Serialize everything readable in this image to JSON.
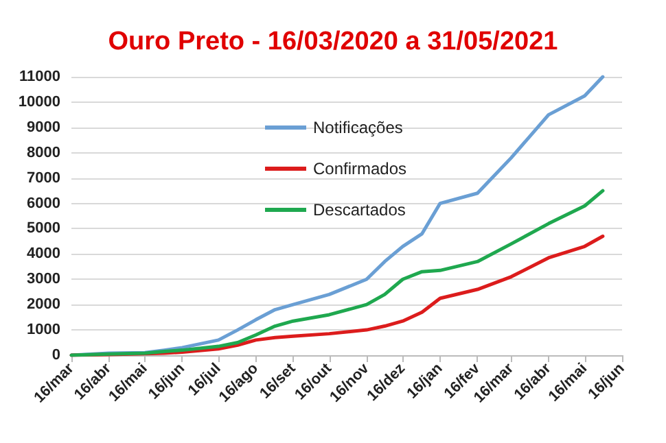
{
  "chart_data": {
    "type": "line",
    "title": "Ouro Preto - 16/03/2020 a 31/05/2021",
    "x": [
      "2020-03-16",
      "2020-04-16",
      "2020-05-16",
      "2020-06-01",
      "2020-06-16",
      "2020-07-16",
      "2020-08-01",
      "2020-08-16",
      "2020-09-01",
      "2020-09-16",
      "2020-10-16",
      "2020-11-16",
      "2020-12-01",
      "2020-12-16",
      "2021-01-01",
      "2021-01-16",
      "2021-02-16",
      "2021-03-16",
      "2021-04-16",
      "2021-05-16",
      "2021-05-31"
    ],
    "series": [
      {
        "name": "Notificações",
        "color": "#6a9fd4",
        "values": [
          0,
          80,
          100,
          200,
          300,
          600,
          1000,
          1400,
          1800,
          2000,
          2400,
          3000,
          3700,
          4300,
          4800,
          6000,
          6400,
          7800,
          9500,
          10250,
          11000
        ]
      },
      {
        "name": "Confirmados",
        "color": "#dc1c1c",
        "values": [
          0,
          30,
          60,
          80,
          120,
          250,
          400,
          600,
          700,
          750,
          850,
          1000,
          1150,
          1350,
          1700,
          2250,
          2600,
          3100,
          3850,
          4300,
          4700
        ]
      },
      {
        "name": "Descartados",
        "color": "#1fa84f",
        "values": [
          0,
          50,
          80,
          150,
          200,
          350,
          500,
          800,
          1150,
          1350,
          1600,
          2000,
          2400,
          3000,
          3300,
          3350,
          3700,
          4400,
          5200,
          5900,
          6500
        ]
      }
    ],
    "xlim": [
      "2020-03-16",
      "2021-06-16"
    ],
    "xticks": [
      {
        "value": "2020-03-16",
        "label": "16/mar"
      },
      {
        "value": "2020-04-16",
        "label": "16/abr"
      },
      {
        "value": "2020-05-16",
        "label": "16/mai"
      },
      {
        "value": "2020-06-16",
        "label": "16/jun"
      },
      {
        "value": "2020-07-16",
        "label": "16/jul"
      },
      {
        "value": "2020-08-16",
        "label": "16/ago"
      },
      {
        "value": "2020-09-16",
        "label": "16/set"
      },
      {
        "value": "2020-10-16",
        "label": "16/out"
      },
      {
        "value": "2020-11-16",
        "label": "16/nov"
      },
      {
        "value": "2020-12-16",
        "label": "16/dez"
      },
      {
        "value": "2021-01-16",
        "label": "16/jan"
      },
      {
        "value": "2021-02-16",
        "label": "16/fev"
      },
      {
        "value": "2021-03-16",
        "label": "16/mar"
      },
      {
        "value": "2021-04-16",
        "label": "16/abr"
      },
      {
        "value": "2021-05-16",
        "label": "16/mai"
      },
      {
        "value": "2021-06-16",
        "label": "16/jun"
      }
    ],
    "ylim": [
      0,
      11000
    ],
    "yticks": [
      0,
      1000,
      2000,
      3000,
      4000,
      5000,
      6000,
      7000,
      8000,
      9000,
      10000,
      11000
    ],
    "grid": "y",
    "legend": "top",
    "marker": "none",
    "line_style": "solid"
  }
}
